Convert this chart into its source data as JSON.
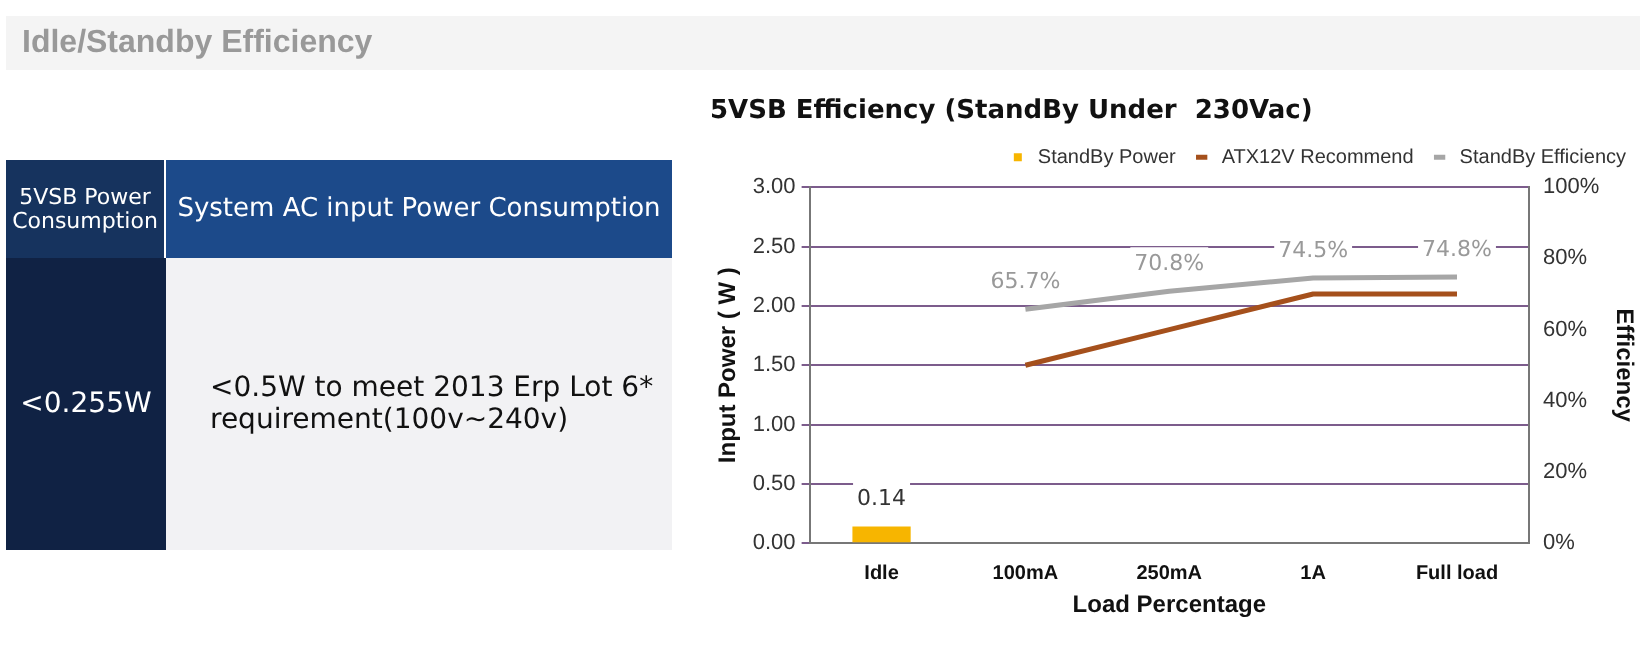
{
  "chart_data": [
    {
      "type": "other",
      "title": "Idle/Standby Efficiency",
      "annotations": [
        "5VSB  Power Consumption",
        "System AC input Power Consumption",
        "<0.255W",
        "<0.5W to meet 2013 Erp Lot 6* requirement(100v~240v)"
      ]
    },
    {
      "type": "bar",
      "title": "5VSB Efficiency (StandBy Under  230Vac)",
      "xlabel": "Load Percentage",
      "ylabel": "Input Power ( W )",
      "y2label": "Efficiency",
      "categories": [
        "Idle",
        "100mA",
        "250mA",
        "1A",
        "Full load"
      ],
      "series": [
        {
          "name": "StandBy Power",
          "type": "bar",
          "color": "#f7b500",
          "values": [
            0.14,
            null,
            null,
            null,
            null
          ],
          "value_labels": [
            "0.14",
            null,
            null,
            null,
            null
          ]
        },
        {
          "name": "ATX12V Recommend",
          "type": "line",
          "color": "#a5501c",
          "values": [
            null,
            1.5,
            1.8,
            2.1,
            2.1
          ]
        },
        {
          "name": "StandBy Efficiency",
          "type": "line",
          "axis": "y2",
          "color": "#a6a6a6",
          "values": [
            null,
            65.7,
            70.8,
            74.5,
            74.8
          ],
          "value_labels": [
            null,
            "65.7%",
            "70.8%",
            "74.5%",
            "74.8%"
          ]
        }
      ],
      "ylim": [
        0,
        3
      ],
      "yticks": [
        {
          "value": 0,
          "label": "0.00"
        },
        {
          "value": 0.5,
          "label": "0.50"
        },
        {
          "value": 1,
          "label": "1.00"
        },
        {
          "value": 1.5,
          "label": "1.50"
        },
        {
          "value": 2,
          "label": "2.00"
        },
        {
          "value": 2.5,
          "label": "2.50"
        },
        {
          "value": 3,
          "label": "3.00"
        }
      ],
      "y2lim": [
        0,
        100
      ],
      "y2ticks": [
        {
          "value": 0,
          "label": "0%"
        },
        {
          "value": 20,
          "label": "20%"
        },
        {
          "value": 40,
          "label": "40%"
        },
        {
          "value": 60,
          "label": "60%"
        },
        {
          "value": 80,
          "label": "80%"
        },
        {
          "value": 100,
          "label": "100%"
        }
      ],
      "grid": "y",
      "legend": "top",
      "marker": "none",
      "line_style": "solid"
    }
  ]
}
